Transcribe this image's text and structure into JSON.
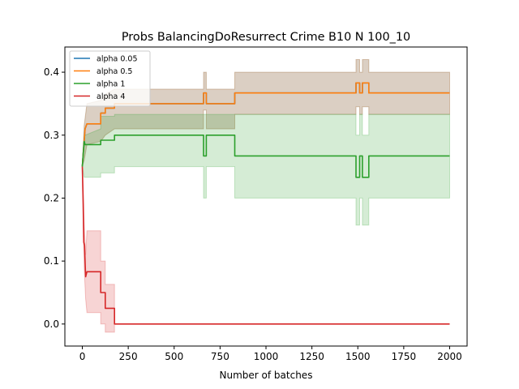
{
  "chart_data": {
    "type": "line",
    "title": "Probs BalancingDoResurrect Crime B10 N 100_10",
    "xlabel": "Number of batches",
    "ylabel": "",
    "xlim": [
      -95,
      2095
    ],
    "ylim": [
      -0.035,
      0.44
    ],
    "x_ticks": [
      "0",
      "250",
      "500",
      "750",
      "1000",
      "1250",
      "1500",
      "1750",
      "2000"
    ],
    "y_ticks": [
      "0.0",
      "0.1",
      "0.2",
      "0.3",
      "0.4"
    ],
    "x_tick_values": [
      0,
      250,
      500,
      750,
      1000,
      1250,
      1500,
      1750,
      2000
    ],
    "y_tick_values": [
      0.0,
      0.1,
      0.2,
      0.3,
      0.4
    ],
    "grid": false,
    "legend_position": "upper-left",
    "series": [
      {
        "name": "alpha 0.05",
        "color": "#1f77b4",
        "points": [
          [
            0,
            0.25
          ],
          [
            5,
            0.27
          ],
          [
            10,
            0.29
          ],
          [
            15,
            0.31
          ],
          [
            25,
            0.318
          ],
          [
            100,
            0.318
          ],
          [
            100,
            0.335
          ],
          [
            125,
            0.335
          ],
          [
            125,
            0.343
          ],
          [
            175,
            0.343
          ],
          [
            175,
            0.35
          ],
          [
            660,
            0.35
          ],
          [
            660,
            0.367
          ],
          [
            675,
            0.367
          ],
          [
            675,
            0.35
          ],
          [
            830,
            0.35
          ],
          [
            830,
            0.367
          ],
          [
            1490,
            0.367
          ],
          [
            1490,
            0.383
          ],
          [
            1510,
            0.383
          ],
          [
            1510,
            0.367
          ],
          [
            1525,
            0.367
          ],
          [
            1525,
            0.383
          ],
          [
            1560,
            0.383
          ],
          [
            1560,
            0.367
          ],
          [
            2000,
            0.367
          ]
        ],
        "band": [
          [
            0,
            0.25,
            0.25
          ],
          [
            10,
            0.26,
            0.315
          ],
          [
            25,
            0.285,
            0.35
          ],
          [
            100,
            0.29,
            0.355
          ],
          [
            125,
            0.3,
            0.365
          ],
          [
            175,
            0.31,
            0.373
          ],
          [
            660,
            0.31,
            0.373
          ],
          [
            660,
            0.34,
            0.4
          ],
          [
            675,
            0.34,
            0.4
          ],
          [
            675,
            0.31,
            0.373
          ],
          [
            830,
            0.31,
            0.373
          ],
          [
            830,
            0.333,
            0.4
          ],
          [
            1490,
            0.333,
            0.4
          ],
          [
            1490,
            0.345,
            0.42
          ],
          [
            1510,
            0.345,
            0.42
          ],
          [
            1510,
            0.333,
            0.4
          ],
          [
            1525,
            0.333,
            0.4
          ],
          [
            1525,
            0.345,
            0.42
          ],
          [
            1560,
            0.345,
            0.42
          ],
          [
            1560,
            0.333,
            0.4
          ],
          [
            2000,
            0.333,
            0.4
          ]
        ]
      },
      {
        "name": "alpha 0.5",
        "color": "#ff7f0e",
        "points": [
          [
            0,
            0.25
          ],
          [
            5,
            0.27
          ],
          [
            10,
            0.29
          ],
          [
            15,
            0.31
          ],
          [
            25,
            0.318
          ],
          [
            100,
            0.318
          ],
          [
            100,
            0.335
          ],
          [
            125,
            0.335
          ],
          [
            125,
            0.343
          ],
          [
            175,
            0.343
          ],
          [
            175,
            0.35
          ],
          [
            660,
            0.35
          ],
          [
            660,
            0.367
          ],
          [
            675,
            0.367
          ],
          [
            675,
            0.35
          ],
          [
            830,
            0.35
          ],
          [
            830,
            0.367
          ],
          [
            1490,
            0.367
          ],
          [
            1490,
            0.383
          ],
          [
            1510,
            0.383
          ],
          [
            1510,
            0.367
          ],
          [
            1525,
            0.367
          ],
          [
            1525,
            0.383
          ],
          [
            1560,
            0.383
          ],
          [
            1560,
            0.367
          ],
          [
            2000,
            0.367
          ]
        ],
        "band": [
          [
            0,
            0.25,
            0.25
          ],
          [
            10,
            0.26,
            0.315
          ],
          [
            25,
            0.285,
            0.35
          ],
          [
            100,
            0.29,
            0.355
          ],
          [
            125,
            0.3,
            0.365
          ],
          [
            175,
            0.31,
            0.373
          ],
          [
            660,
            0.31,
            0.373
          ],
          [
            660,
            0.34,
            0.4
          ],
          [
            675,
            0.34,
            0.4
          ],
          [
            675,
            0.31,
            0.373
          ],
          [
            830,
            0.31,
            0.373
          ],
          [
            830,
            0.333,
            0.4
          ],
          [
            1490,
            0.333,
            0.4
          ],
          [
            1490,
            0.345,
            0.42
          ],
          [
            1510,
            0.345,
            0.42
          ],
          [
            1510,
            0.333,
            0.4
          ],
          [
            1525,
            0.333,
            0.4
          ],
          [
            1525,
            0.345,
            0.42
          ],
          [
            1560,
            0.345,
            0.42
          ],
          [
            1560,
            0.333,
            0.4
          ],
          [
            2000,
            0.333,
            0.4
          ]
        ]
      },
      {
        "name": "alpha 1",
        "color": "#2ca02c",
        "points": [
          [
            0,
            0.25
          ],
          [
            5,
            0.27
          ],
          [
            10,
            0.29
          ],
          [
            15,
            0.285
          ],
          [
            100,
            0.285
          ],
          [
            100,
            0.292
          ],
          [
            175,
            0.292
          ],
          [
            175,
            0.3
          ],
          [
            660,
            0.3
          ],
          [
            660,
            0.267
          ],
          [
            675,
            0.267
          ],
          [
            675,
            0.3
          ],
          [
            830,
            0.3
          ],
          [
            830,
            0.267
          ],
          [
            1490,
            0.267
          ],
          [
            1490,
            0.233
          ],
          [
            1510,
            0.233
          ],
          [
            1510,
            0.267
          ],
          [
            1525,
            0.267
          ],
          [
            1525,
            0.233
          ],
          [
            1560,
            0.233
          ],
          [
            1560,
            0.267
          ],
          [
            2000,
            0.267
          ]
        ],
        "band": [
          [
            0,
            0.25,
            0.25
          ],
          [
            10,
            0.233,
            0.3
          ],
          [
            15,
            0.233,
            0.3
          ],
          [
            100,
            0.233,
            0.31
          ],
          [
            100,
            0.24,
            0.33
          ],
          [
            175,
            0.24,
            0.33
          ],
          [
            175,
            0.25,
            0.333
          ],
          [
            660,
            0.25,
            0.333
          ],
          [
            660,
            0.2,
            0.333
          ],
          [
            675,
            0.2,
            0.333
          ],
          [
            675,
            0.25,
            0.333
          ],
          [
            830,
            0.25,
            0.333
          ],
          [
            830,
            0.2,
            0.333
          ],
          [
            1490,
            0.2,
            0.333
          ],
          [
            1490,
            0.157,
            0.3
          ],
          [
            1510,
            0.157,
            0.3
          ],
          [
            1510,
            0.2,
            0.333
          ],
          [
            1525,
            0.2,
            0.333
          ],
          [
            1525,
            0.157,
            0.3
          ],
          [
            1560,
            0.157,
            0.3
          ],
          [
            1560,
            0.2,
            0.333
          ],
          [
            2000,
            0.2,
            0.333
          ]
        ]
      },
      {
        "name": "alpha 4",
        "color": "#d62728",
        "points": [
          [
            0,
            0.25
          ],
          [
            5,
            0.19
          ],
          [
            8,
            0.13
          ],
          [
            12,
            0.125
          ],
          [
            18,
            0.075
          ],
          [
            25,
            0.083
          ],
          [
            100,
            0.083
          ],
          [
            100,
            0.05
          ],
          [
            125,
            0.05
          ],
          [
            125,
            0.025
          ],
          [
            175,
            0.025
          ],
          [
            175,
            0.0
          ],
          [
            2000,
            0.0
          ]
        ],
        "band": [
          [
            0,
            0.25,
            0.25
          ],
          [
            5,
            0.16,
            0.22
          ],
          [
            10,
            0.09,
            0.16
          ],
          [
            18,
            0.04,
            0.11
          ],
          [
            25,
            0.018,
            0.148
          ],
          [
            100,
            0.018,
            0.148
          ],
          [
            100,
            0.0,
            0.1
          ],
          [
            125,
            0.0,
            0.1
          ],
          [
            125,
            -0.013,
            0.063
          ],
          [
            175,
            -0.013,
            0.063
          ],
          [
            175,
            0.0,
            0.0
          ],
          [
            2000,
            0.0,
            0.0
          ]
        ]
      }
    ]
  }
}
